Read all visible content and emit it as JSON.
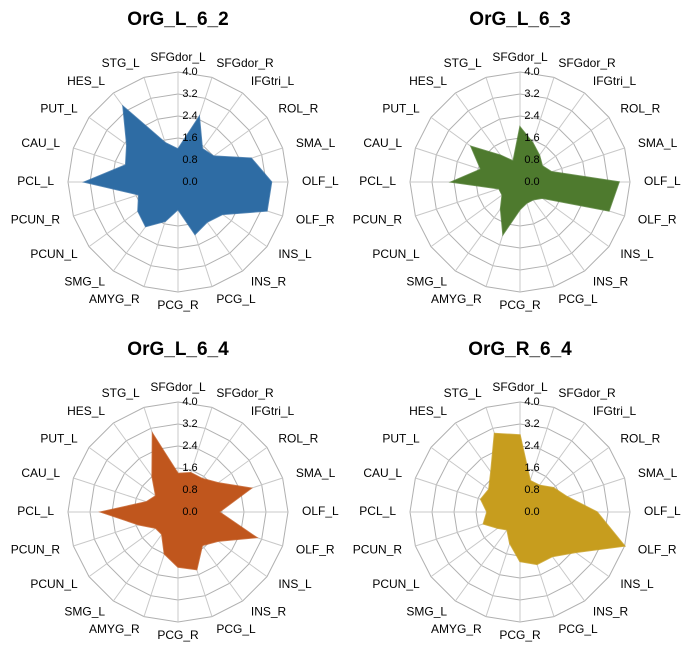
{
  "chart_data": [
    {
      "type": "radar",
      "title": "OrG_L_6_2",
      "color": "#2e6ca4",
      "categories": [
        "SFGdor_L",
        "SFGdor_R",
        "IFGtri_L",
        "ROL_R",
        "SMA_L",
        "OLF_L",
        "OLF_R",
        "INS_L",
        "INS_R",
        "PCG_L",
        "PCG_R",
        "AMYG_R",
        "SMG_L",
        "PCUN_L",
        "PCUN_R",
        "PCL_L",
        "CAU_L",
        "PUT_L",
        "HES_L",
        "STG_L"
      ],
      "values": [
        1.2,
        2.5,
        1.5,
        1.6,
        2.8,
        3.4,
        3.4,
        2.0,
        1.8,
        2.0,
        1.0,
        1.5,
        2.0,
        1.8,
        1.5,
        3.4,
        2.0,
        2.3,
        3.4,
        1.5
      ],
      "rlim": [
        0,
        4
      ],
      "rticks": [
        {
          "value": 0,
          "label": "0.0"
        },
        0.8,
        1.6,
        2.4,
        3.2,
        {
          "value": 4,
          "label": "4.0"
        }
      ]
    },
    {
      "type": "radar",
      "title": "OrG_L_6_3",
      "color": "#4e7a2e",
      "categories": [
        "SFGdor_L",
        "SFGdor_R",
        "IFGtri_L",
        "ROL_R",
        "SMA_L",
        "OLF_L",
        "OLF_R",
        "INS_L",
        "INS_R",
        "PCG_L",
        "PCG_R",
        "AMYG_R",
        "SMG_L",
        "PCUN_L",
        "PCUN_R",
        "PCL_L",
        "CAU_L",
        "PUT_L",
        "HES_L",
        "STG_L"
      ],
      "values": [
        2.0,
        1.5,
        1.2,
        1.0,
        1.2,
        3.6,
        3.4,
        1.0,
        0.8,
        0.8,
        1.0,
        2.0,
        1.2,
        0.8,
        0.8,
        2.5,
        1.5,
        2.2,
        1.2,
        0.8
      ],
      "rlim": [
        0,
        4
      ],
      "rticks": [
        {
          "value": 0,
          "label": "0.0"
        },
        0.8,
        1.6,
        2.4,
        3.2,
        {
          "value": 4,
          "label": "4.0"
        }
      ]
    },
    {
      "type": "radar",
      "title": "OrG_L_6_4",
      "color": "#c0561d",
      "categories": [
        "SFGdor_L",
        "SFGdor_R",
        "IFGtri_L",
        "ROL_R",
        "SMA_L",
        "OLF_L",
        "OLF_R",
        "INS_L",
        "INS_R",
        "PCG_L",
        "PCG_R",
        "AMYG_R",
        "SMG_L",
        "PCUN_L",
        "PCUN_R",
        "PCL_L",
        "CAU_L",
        "PUT_L",
        "HES_L",
        "STG_L"
      ],
      "values": [
        1.4,
        1.5,
        1.5,
        1.8,
        2.8,
        1.5,
        3.0,
        1.8,
        1.5,
        2.2,
        2.0,
        1.6,
        1.0,
        1.0,
        1.5,
        2.8,
        1.2,
        1.0,
        1.6,
        3.0
      ],
      "rlim": [
        0,
        4
      ],
      "rticks": [
        {
          "value": 0,
          "label": "0.0"
        },
        0.8,
        1.6,
        2.4,
        3.2,
        {
          "value": 4,
          "label": "4.0"
        }
      ]
    },
    {
      "type": "radar",
      "title": "OrG_R_6_4",
      "color": "#c79d1e",
      "categories": [
        "SFGdor_L",
        "SFGdor_R",
        "IFGtri_L",
        "ROL_R",
        "SMA_L",
        "OLF_L",
        "OLF_R",
        "INS_L",
        "INS_R",
        "PCG_L",
        "PCG_R",
        "AMYG_R",
        "SMG_L",
        "PCUN_L",
        "PCUN_R",
        "PCL_L",
        "CAU_L",
        "PUT_L",
        "HES_L",
        "STG_L"
      ],
      "values": [
        2.8,
        1.2,
        1.2,
        1.5,
        1.8,
        2.8,
        4.0,
        2.5,
        2.0,
        2.0,
        1.8,
        1.2,
        0.8,
        1.0,
        1.4,
        1.2,
        1.5,
        1.4,
        1.8,
        3.0
      ],
      "rlim": [
        0,
        4
      ],
      "rticks": [
        {
          "value": 0,
          "label": "0.0"
        },
        0.8,
        1.6,
        2.4,
        3.2,
        {
          "value": 4,
          "label": "4.0"
        }
      ]
    }
  ]
}
